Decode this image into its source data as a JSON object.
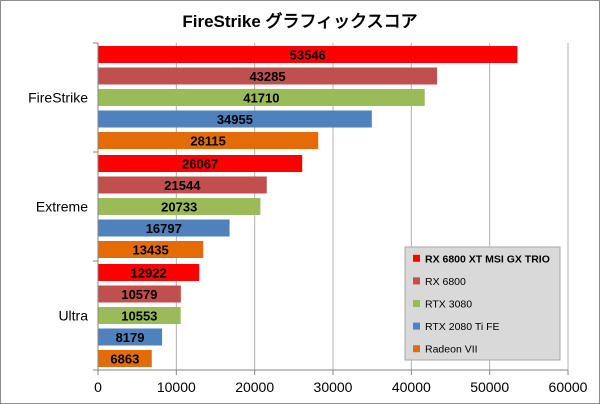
{
  "chart_data": {
    "type": "bar",
    "orientation": "horizontal",
    "title": "FireStrike グラフィックスコア",
    "categories": [
      "FireStrike",
      "Extreme",
      "Ultra"
    ],
    "series": [
      {
        "name": "RX 6800 XT MSI GX TRIO",
        "color": "#ff0000",
        "values": [
          53546,
          26067,
          12922
        ]
      },
      {
        "name": "RX 6800",
        "color": "#c0504d",
        "values": [
          43285,
          21544,
          10579
        ]
      },
      {
        "name": "RTX 3080",
        "color": "#9bbb59",
        "values": [
          41710,
          20733,
          10553
        ]
      },
      {
        "name": "RTX 2080 Ti FE",
        "color": "#4f81bd",
        "values": [
          34955,
          16797,
          8179
        ]
      },
      {
        "name": "Radeon VII",
        "color": "#e36c09",
        "values": [
          28115,
          13435,
          6863
        ]
      }
    ],
    "xlim": [
      0,
      60000
    ],
    "xticks": [
      "0",
      "10000",
      "20000",
      "30000",
      "40000",
      "50000",
      "60000"
    ],
    "grid": true,
    "legend": "bottom-right"
  }
}
